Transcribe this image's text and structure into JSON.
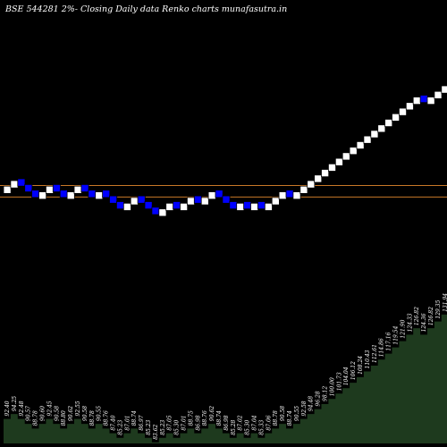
{
  "chart_data": {
    "type": "renko",
    "title": "BSE 544281 2%-  Closing Daily data  Renko  charts munafasutra.in",
    "colors": {
      "background": "#000000",
      "up_brick": "#ffffff",
      "down_brick": "#0000ff",
      "brick_stroke": "#000000",
      "reference_line": "#c87828",
      "area_fill": "#1e3a1e",
      "label_text": "#ffffff"
    },
    "reference_levels": [
      92.6,
      88.9
    ],
    "bricks": [
      {
        "dir": "up",
        "close": 92.4
      },
      {
        "dir": "up",
        "close": 94.25
      },
      {
        "dir": "down",
        "close": 92.4
      },
      {
        "dir": "down",
        "close": 90.55
      },
      {
        "dir": "down",
        "close": 88.74
      },
      {
        "dir": "up",
        "close": 90.55
      },
      {
        "dir": "up",
        "close": 92.4
      },
      {
        "dir": "down",
        "close": 90.55
      },
      {
        "dir": "down",
        "close": 88.74
      },
      {
        "dir": "up",
        "close": 90.55
      },
      {
        "dir": "up",
        "close": 92.4
      },
      {
        "dir": "down",
        "close": 90.55
      },
      {
        "dir": "down",
        "close": 88.74
      },
      {
        "dir": "up",
        "close": 90.55
      },
      {
        "dir": "down",
        "close": 88.74
      },
      {
        "dir": "down",
        "close": 86.97
      },
      {
        "dir": "down",
        "close": 85.23
      },
      {
        "dir": "up",
        "close": 86.97
      },
      {
        "dir": "up",
        "close": 88.74
      },
      {
        "dir": "down",
        "close": 86.97
      },
      {
        "dir": "down",
        "close": 85.23
      },
      {
        "dir": "down",
        "close": 83.53
      },
      {
        "dir": "up",
        "close": 85.23
      },
      {
        "dir": "up",
        "close": 86.97
      },
      {
        "dir": "down",
        "close": 85.23
      },
      {
        "dir": "up",
        "close": 86.97
      },
      {
        "dir": "up",
        "close": 88.74
      },
      {
        "dir": "down",
        "close": 86.97
      },
      {
        "dir": "up",
        "close": 88.74
      },
      {
        "dir": "up",
        "close": 90.55
      },
      {
        "dir": "down",
        "close": 88.74
      },
      {
        "dir": "down",
        "close": 86.97
      },
      {
        "dir": "down",
        "close": 85.23
      },
      {
        "dir": "up",
        "close": 86.97
      },
      {
        "dir": "down",
        "close": 85.23
      },
      {
        "dir": "up",
        "close": 86.97
      },
      {
        "dir": "down",
        "close": 85.23
      },
      {
        "dir": "up",
        "close": 86.97
      },
      {
        "dir": "up",
        "close": 88.74
      },
      {
        "dir": "up",
        "close": 90.55
      },
      {
        "dir": "down",
        "close": 88.74
      },
      {
        "dir": "up",
        "close": 90.55
      },
      {
        "dir": "up",
        "close": 92.4
      },
      {
        "dir": "up",
        "close": 94.25
      },
      {
        "dir": "up",
        "close": 96.12
      },
      {
        "dir": "up",
        "close": 98.04
      },
      {
        "dir": "up",
        "close": 100.0
      },
      {
        "dir": "up",
        "close": 102.0
      },
      {
        "dir": "up",
        "close": 104.04
      },
      {
        "dir": "up",
        "close": 106.12
      },
      {
        "dir": "up",
        "close": 108.24
      },
      {
        "dir": "up",
        "close": 110.4
      },
      {
        "dir": "up",
        "close": 112.61
      },
      {
        "dir": "up",
        "close": 114.86
      },
      {
        "dir": "up",
        "close": 117.16
      },
      {
        "dir": "up",
        "close": 119.5
      },
      {
        "dir": "up",
        "close": 121.89
      },
      {
        "dir": "up",
        "close": 124.33
      },
      {
        "dir": "up",
        "close": 126.82
      },
      {
        "dir": "down",
        "close": 124.33
      },
      {
        "dir": "up",
        "close": 126.82
      },
      {
        "dir": "up",
        "close": 129.35
      },
      {
        "dir": "up",
        "close": 131.94
      }
    ],
    "price_labels": [
      "92.40",
      "94.25",
      "92.48",
      "90.57",
      "88.78",
      "90.60",
      "92.45",
      "90.58",
      "88.80",
      "90.62",
      "92.55",
      "90.58",
      "88.78",
      "90.55",
      "88.76",
      "87.40",
      "85.23",
      "87.01",
      "88.74",
      "86.97",
      "85.23",
      "83.62",
      "85.23",
      "87.05",
      "85.30",
      "87.01",
      "88.75",
      "86.98",
      "88.76",
      "90.62",
      "88.74",
      "86.98",
      "85.28",
      "87.02",
      "85.30",
      "87.04",
      "85.33",
      "87.06",
      "88.78",
      "90.58",
      "88.74",
      "90.55",
      "92.58",
      "94.48",
      "96.28",
      "98.12",
      "100.00",
      "101.73",
      "104.04",
      "106.12",
      "108.24",
      "110.43",
      "112.61",
      "114.86",
      "117.16",
      "119.54",
      "121.90",
      "124.33",
      "126.82",
      "124.36",
      "126.82",
      "129.35",
      "131.94"
    ]
  }
}
